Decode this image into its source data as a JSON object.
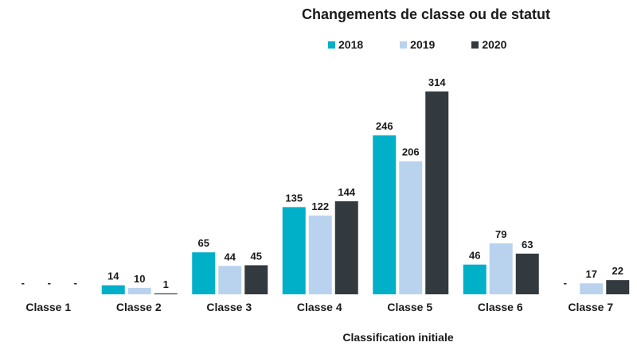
{
  "chart_data": {
    "type": "bar",
    "title": "Changements de classe ou de statut",
    "xlabel": "Classification initiale",
    "ylabel": "",
    "categories": [
      "Classe 1",
      "Classe 2",
      "Classe 3",
      "Classe 4",
      "Classe 5",
      "Classe 6",
      "Classe 7"
    ],
    "series": [
      {
        "name": "2018",
        "color": "#00b0c8",
        "values": [
          null,
          14,
          65,
          135,
          246,
          46,
          null
        ]
      },
      {
        "name": "2019",
        "color": "#b9d3ef",
        "values": [
          null,
          10,
          44,
          122,
          206,
          79,
          17
        ]
      },
      {
        "name": "2020",
        "color": "#333a3f",
        "values": [
          null,
          1,
          45,
          144,
          314,
          63,
          22
        ]
      }
    ],
    "missing_label": "-",
    "ylim": [
      0,
      314
    ],
    "grid": false,
    "legend_position": "top"
  }
}
